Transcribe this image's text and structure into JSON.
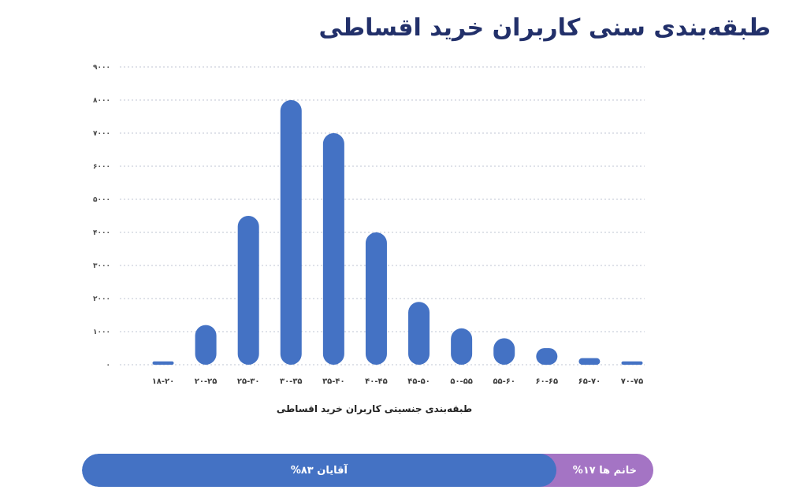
{
  "chart_data": {
    "type": "bar",
    "title": "طبقه‌بندی سنی کاربران خرید اقساطی",
    "xlabel": "طبقه‌بندی جنسیتی کاربران خرید اقساطی",
    "ylabel": "",
    "ylim": [
      0,
      9000
    ],
    "yticks": [
      {
        "value": 0,
        "label": "۰"
      },
      {
        "value": 1000,
        "label": "۱۰۰۰"
      },
      {
        "value": 2000,
        "label": "۲۰۰۰"
      },
      {
        "value": 3000,
        "label": "۳۰۰۰"
      },
      {
        "value": 4000,
        "label": "۴۰۰۰"
      },
      {
        "value": 5000,
        "label": "۵۰۰۰"
      },
      {
        "value": 6000,
        "label": "۶۰۰۰"
      },
      {
        "value": 7000,
        "label": "۷۰۰۰"
      },
      {
        "value": 8000,
        "label": "۸۰۰۰"
      },
      {
        "value": 9000,
        "label": "۹۰۰۰"
      }
    ],
    "grid": true,
    "categories": [
      "۱۸-۲۰",
      "۲۰-۲۵",
      "۲۵-۳۰",
      "۳۰-۳۵",
      "۳۵-۴۰",
      "۴۰-۴۵",
      "۴۵-۵۰",
      "۵۰-۵۵",
      "۵۵-۶۰",
      "۶۰-۶۵",
      "۶۵-۷۰",
      "۷۰-۷۵"
    ],
    "values": [
      100,
      1200,
      4500,
      8000,
      7000,
      4000,
      1900,
      1100,
      800,
      500,
      200,
      100
    ],
    "bar_color": "#4472c4"
  },
  "gender": {
    "men_label": "آقایان ۸۳%",
    "men_share": 83,
    "men_color": "#4472c4",
    "women_label": "خانم ها ۱۷%",
    "women_share": 17,
    "women_color": "#a474c4"
  }
}
